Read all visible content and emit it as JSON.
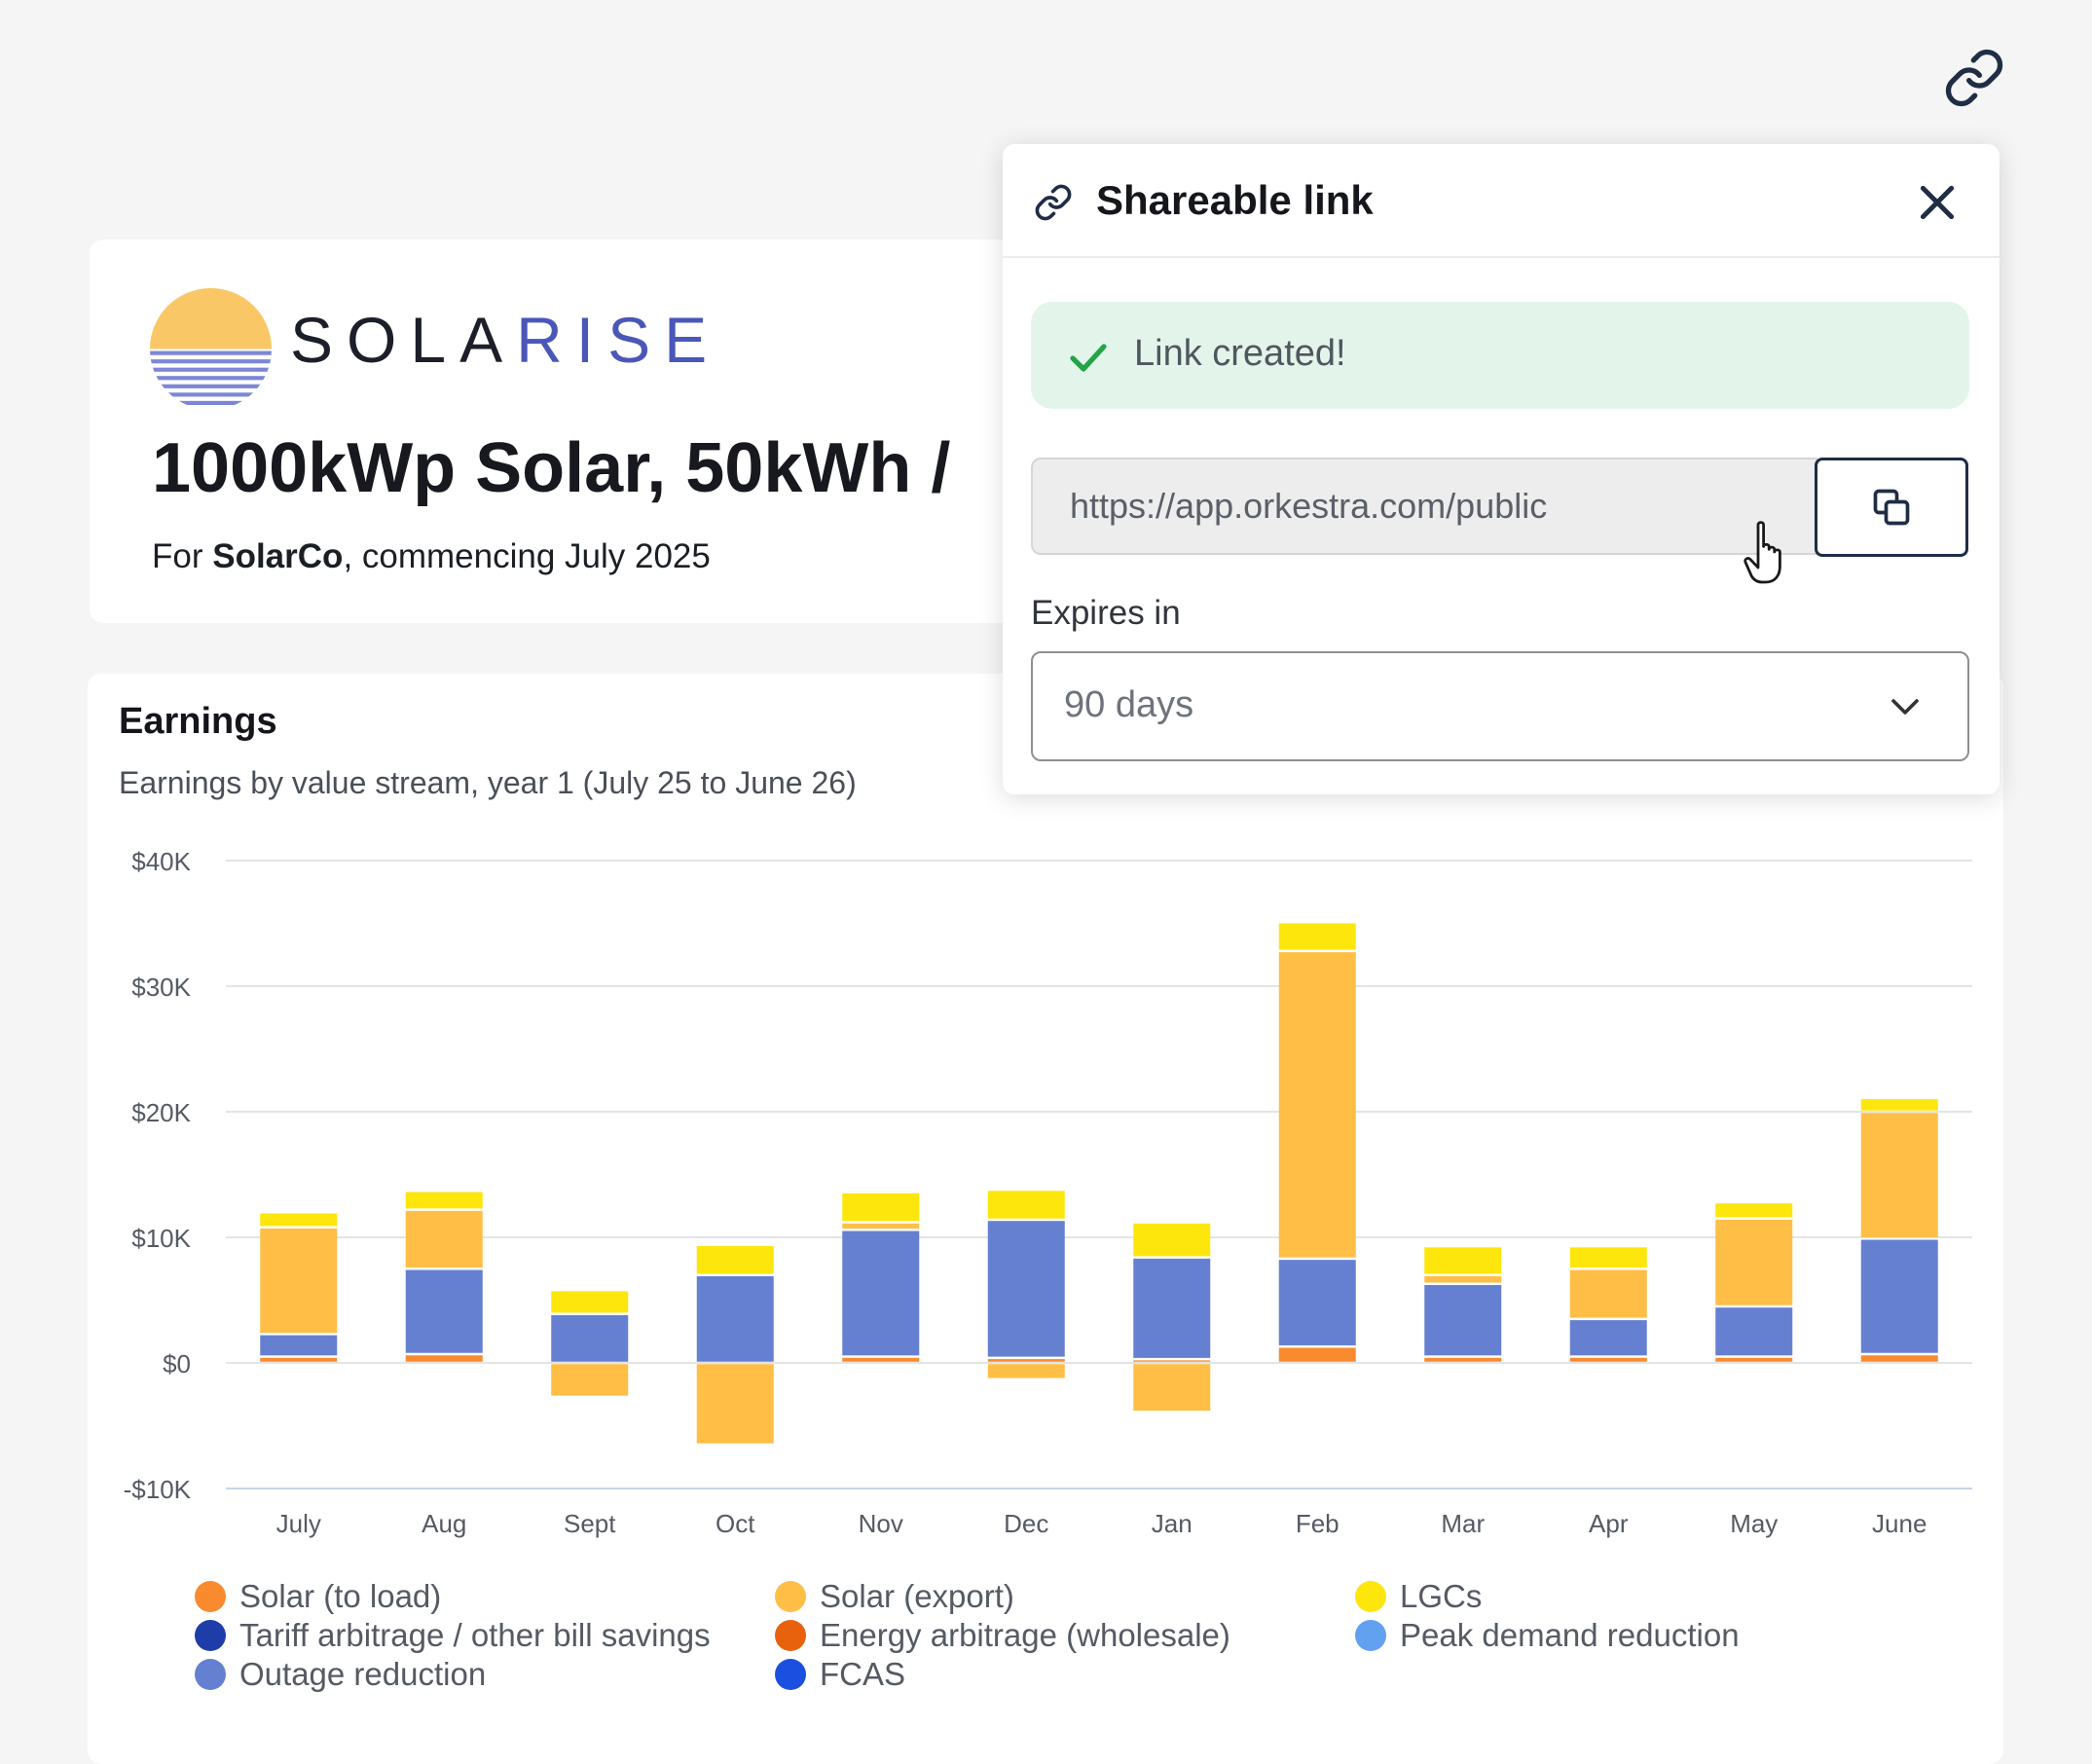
{
  "header": {
    "brand_part1": "SOLA",
    "brand_part2": "RISE",
    "project_title": "1000kWp Solar, 50kWh /",
    "subtitle_prefix": "For ",
    "client": "SolarCo",
    "subtitle_suffix": ", commencing July 2025",
    "logo": {
      "sun_color": "#f9c766",
      "stripe_color": "#7d86d6"
    }
  },
  "share_popup": {
    "title": "Shareable link",
    "success_message": "Link created!",
    "url": "https://app.orkestra.com/public",
    "expires_label": "Expires in",
    "expires_value": "90 days",
    "icons": [
      "link-icon",
      "close-icon",
      "check-icon",
      "copy-icon",
      "chevron-down-icon",
      "hand-cursor-icon"
    ]
  },
  "earnings": {
    "title": "Earnings",
    "subtitle": "Earnings by value stream, year 1 (July 25 to June 26)"
  },
  "chart_data": {
    "type": "bar",
    "stacked": true,
    "categories": [
      "July",
      "Aug",
      "Sept",
      "Oct",
      "Nov",
      "Dec",
      "Jan",
      "Feb",
      "Mar",
      "Apr",
      "May",
      "June"
    ],
    "ylim": [
      -10000,
      40000
    ],
    "yticks": [
      {
        "value": 40000,
        "label": "$40K"
      },
      {
        "value": 30000,
        "label": "$30K"
      },
      {
        "value": 20000,
        "label": "$20K"
      },
      {
        "value": 10000,
        "label": "$10K"
      },
      {
        "value": 0,
        "label": "$0"
      },
      {
        "value": -10000,
        "label": "-$10K"
      }
    ],
    "grid": true,
    "legend_position": "bottom",
    "series": [
      {
        "name": "Solar (to load)",
        "color": "#f98a2e",
        "values": [
          500,
          700,
          0,
          0,
          500,
          400,
          300,
          1300,
          500,
          500,
          500,
          700
        ]
      },
      {
        "name": "Tariff arbitrage / other bill savings",
        "color": "#1e3da8",
        "values": [
          0,
          0,
          0,
          0,
          0,
          0,
          0,
          0,
          0,
          0,
          0,
          0
        ]
      },
      {
        "name": "Outage reduction",
        "color": "#6680d1",
        "values": [
          1800,
          6800,
          3900,
          7000,
          10100,
          11000,
          8100,
          7000,
          5800,
          3000,
          4000,
          9200
        ]
      },
      {
        "name": "Solar (export)",
        "color": "#ffbe45",
        "values": [
          8500,
          4700,
          -2700,
          -6500,
          600,
          -1300,
          -3900,
          24500,
          700,
          4000,
          7000,
          10100
        ]
      },
      {
        "name": "Energy arbitrage (wholesale)",
        "color": "#e8620e",
        "values": [
          0,
          0,
          0,
          0,
          0,
          0,
          0,
          0,
          0,
          0,
          0,
          0
        ]
      },
      {
        "name": "FCAS",
        "color": "#1b4fe0",
        "values": [
          0,
          0,
          0,
          0,
          0,
          0,
          0,
          0,
          0,
          0,
          0,
          0
        ]
      },
      {
        "name": "LGCs",
        "color": "#fde60c",
        "values": [
          1200,
          1500,
          1900,
          2400,
          2400,
          2400,
          2800,
          2300,
          2300,
          1800,
          1300,
          1100
        ]
      },
      {
        "name": "Peak demand reduction",
        "color": "#62a0f0",
        "values": [
          0,
          0,
          0,
          0,
          0,
          0,
          0,
          0,
          0,
          0,
          0,
          0
        ]
      }
    ],
    "legend_order": [
      "Solar (to load)",
      "Solar (export)",
      "LGCs",
      "Tariff arbitrage / other bill savings",
      "Energy arbitrage (wholesale)",
      "Peak demand reduction",
      "Outage reduction",
      "FCAS"
    ]
  }
}
